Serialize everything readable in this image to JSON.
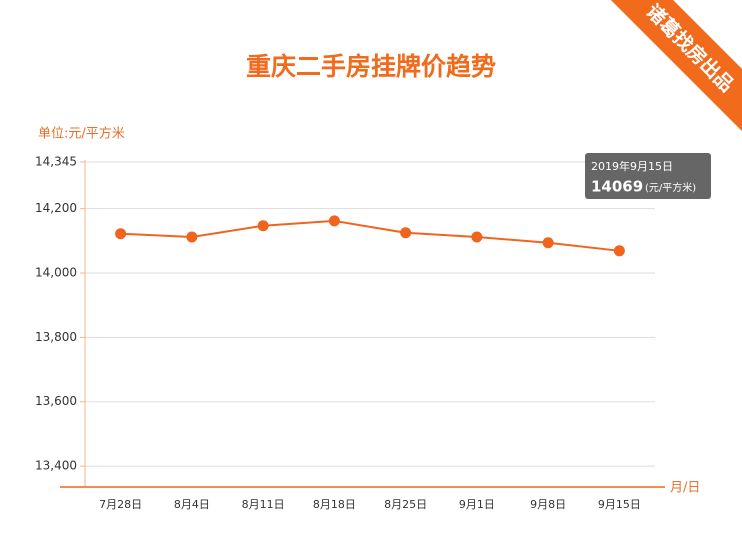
{
  "chart_data": {
    "type": "line",
    "title": "重庆二手房挂牌价趋势",
    "badge": "诸葛找房出品",
    "y_label": "单位:元/平方米",
    "x_label": "月/日",
    "categories": [
      "7月28日",
      "8月4日",
      "8月11日",
      "8月18日",
      "8月25日",
      "9月1日",
      "9月8日",
      "9月15日"
    ],
    "values": [
      14122,
      14112,
      14147,
      14162,
      14125,
      14112,
      14094,
      14069
    ],
    "color": "#f0641e",
    "ylim": [
      13335,
      14345
    ],
    "yticks": [
      {
        "value": 13400,
        "label": "13,400"
      },
      {
        "value": 13600,
        "label": "13,600"
      },
      {
        "value": 13800,
        "label": "13,800"
      },
      {
        "value": 14000,
        "label": "14,000"
      },
      {
        "value": 14200,
        "label": "14,200"
      },
      {
        "value": 14345,
        "label": "14,345"
      }
    ],
    "grid": true,
    "tooltip": {
      "date": "2019年9月15日",
      "unit": "(元/平方米)"
    }
  }
}
